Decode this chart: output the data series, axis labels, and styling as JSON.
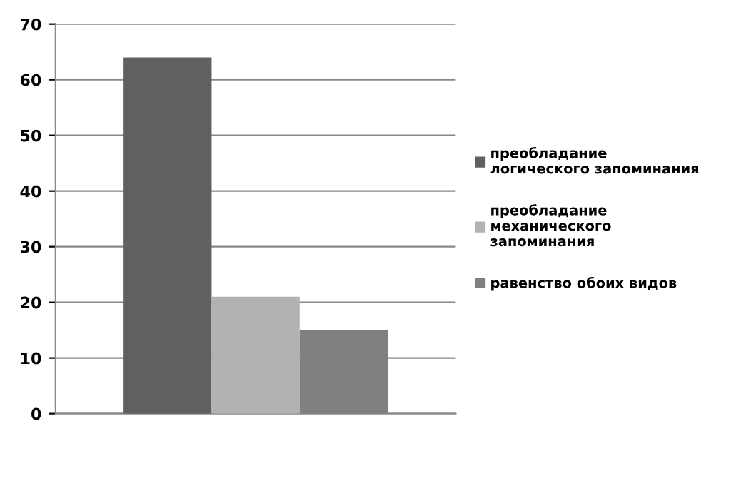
{
  "chart_data": {
    "type": "bar",
    "categories": [
      null
    ],
    "series": [
      {
        "name": "преобладание логического запоминания",
        "color": "#606060",
        "values": [
          64
        ]
      },
      {
        "name": "преобладание механического запоминания",
        "color": "#b2b2b2",
        "values": [
          21
        ]
      },
      {
        "name": "равенство обоих видов",
        "color": "#808080",
        "values": [
          15
        ]
      }
    ],
    "ylim": [
      0,
      70
    ],
    "yticks": [
      0,
      10,
      20,
      30,
      40,
      50,
      60,
      70
    ],
    "grid": "y",
    "legend": "right"
  }
}
